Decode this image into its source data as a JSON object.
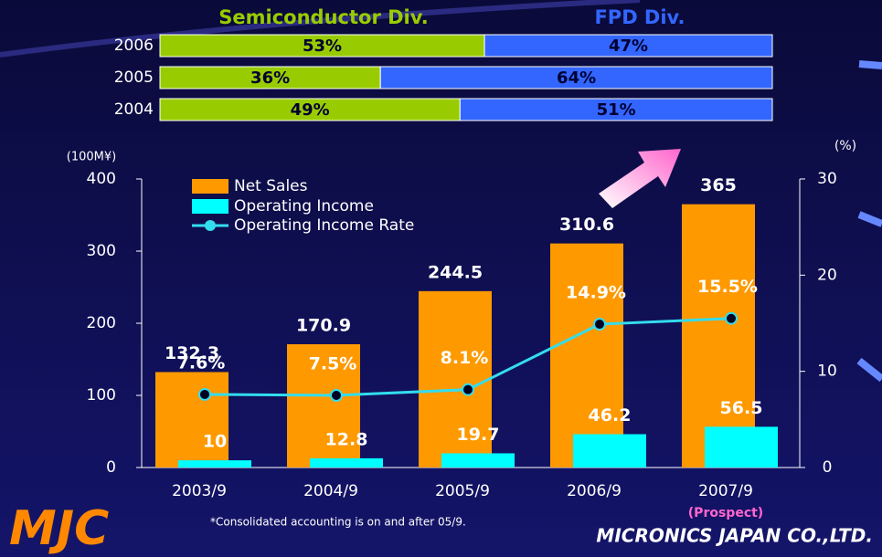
{
  "logo": "MJC",
  "company": "MICRONICS JAPAN CO.,LTD.",
  "footnote": "*Consolidated accounting is on and after 05/9.",
  "chart_data": [
    {
      "type": "hbar",
      "stacked": true,
      "categories": [
        "2006",
        "2005",
        "2004"
      ],
      "xlim": [
        0,
        100
      ],
      "series": [
        {
          "name": "Semiconductor Div.",
          "color": "#99cc00",
          "values": [
            53,
            36,
            49
          ],
          "value_labels": [
            "53%",
            "36%",
            "49%"
          ]
        },
        {
          "name": "FPD Div.",
          "color": "#3366ff",
          "values": [
            47,
            64,
            51
          ],
          "value_labels": [
            "47%",
            "64%",
            "51%"
          ]
        }
      ]
    },
    {
      "type": "combo",
      "categories": [
        "2003/9",
        "2004/9",
        "2005/9",
        "2006/9",
        "2007/9"
      ],
      "annotation": "(Prospect)",
      "ylabel": "(100M¥)",
      "y2label": "(%)",
      "ylim": [
        0,
        400
      ],
      "yticks": [
        0,
        100,
        200,
        300,
        400
      ],
      "y2lim": [
        0,
        30
      ],
      "y2ticks": [
        0,
        10,
        20,
        30
      ],
      "grid": false,
      "legend": "upper left",
      "series": [
        {
          "name": "Net Sales",
          "kind": "bar",
          "color": "#ff9900",
          "values": [
            132.3,
            170.9,
            244.5,
            310.6,
            365
          ]
        },
        {
          "name": "Operating Income",
          "kind": "bar",
          "color": "#00ffff",
          "values": [
            10,
            12.8,
            19.7,
            46.2,
            56.5
          ]
        },
        {
          "name": "Operating Income Rate",
          "kind": "line",
          "axis": "y2",
          "color": "#33ddee",
          "values": [
            7.6,
            7.5,
            8.1,
            14.9,
            15.5
          ],
          "value_labels": [
            "7.6%",
            "7.5%",
            "8.1%",
            "14.9%",
            "15.5%"
          ]
        }
      ]
    }
  ]
}
